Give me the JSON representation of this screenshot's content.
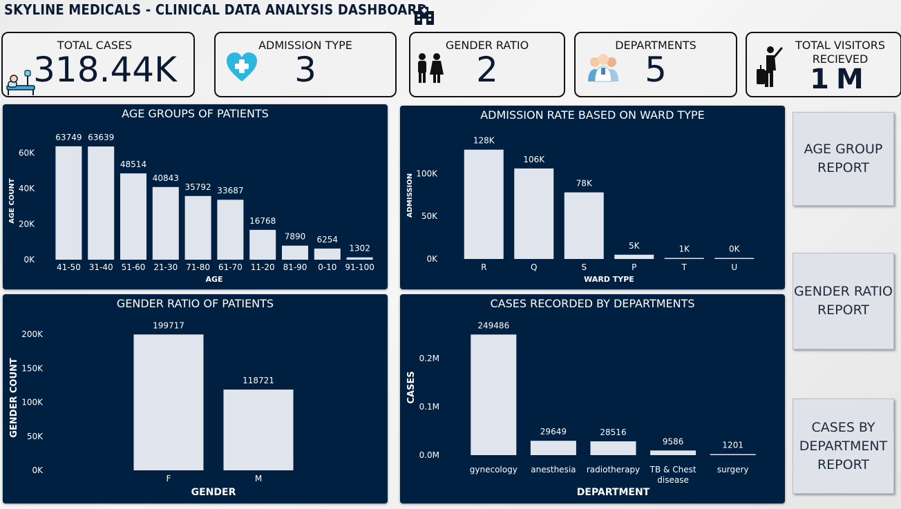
{
  "header": {
    "title": "SKYLINE MEDICALS - CLINICAL DATA ANALYSIS DASHBOARD"
  },
  "kpis": [
    {
      "label": "TOTAL CASES",
      "value": "318.44K",
      "icon": "patient-bed-icon"
    },
    {
      "label": "ADMISSION TYPE",
      "value": "3",
      "icon": "heart-plus-icon"
    },
    {
      "label": "GENDER RATIO",
      "value": "2",
      "icon": "male-female-icon"
    },
    {
      "label": "DEPARTMENTS",
      "value": "5",
      "icon": "doctors-group-icon"
    },
    {
      "label": "TOTAL VISITORS\nRECIEVED",
      "value": "1M",
      "icon": "traveler-luggage-icon"
    }
  ],
  "nav": {
    "age_report": "AGE GROUP\nREPORT",
    "gender_report": "GENDER RATIO\nREPORT",
    "department_report": "CASES BY\nDEPARTMENT\nREPORT"
  },
  "colors": {
    "panel_bg": "#002042",
    "bar": "#e0e4ec",
    "text": "#ffffff"
  },
  "chart_data": [
    {
      "id": "age",
      "type": "bar",
      "title": "AGE GROUPS OF PATIENTS",
      "xlabel": "AGE",
      "ylabel": "AGE COUNT",
      "categories": [
        "41-50",
        "31-40",
        "51-60",
        "21-30",
        "71-80",
        "61-70",
        "11-20",
        "81-90",
        "0-10",
        "91-100"
      ],
      "values": [
        63749,
        63639,
        48514,
        40843,
        35792,
        33687,
        16768,
        7890,
        6254,
        1302
      ],
      "value_labels": [
        "63749",
        "63639",
        "48514",
        "40843",
        "35792",
        "33687",
        "16768",
        "7890",
        "6254",
        "1302"
      ],
      "y_ticks": [
        0,
        20000,
        40000,
        60000
      ],
      "y_tick_labels": [
        "0K",
        "20K",
        "40K",
        "60K"
      ],
      "ylim": [
        0,
        66000
      ]
    },
    {
      "id": "ward",
      "type": "bar",
      "title": "ADMISSION RATE BASED ON WARD TYPE",
      "xlabel": "WARD TYPE",
      "ylabel": "ADMISSION",
      "categories": [
        "R",
        "Q",
        "S",
        "P",
        "T",
        "U"
      ],
      "values": [
        128000,
        106000,
        78000,
        5000,
        1000,
        0
      ],
      "value_labels": [
        "128K",
        "106K",
        "78K",
        "5K",
        "1K",
        "0K"
      ],
      "y_ticks": [
        0,
        50000,
        100000
      ],
      "y_tick_labels": [
        "0K",
        "50K",
        "100K"
      ],
      "ylim": [
        0,
        131000
      ]
    },
    {
      "id": "gender",
      "type": "bar",
      "title": "GENDER RATIO OF PATIENTS",
      "xlabel": "GENDER",
      "ylabel": "GENDER COUNT",
      "categories": [
        "F",
        "M"
      ],
      "values": [
        199717,
        118721
      ],
      "value_labels": [
        "199717",
        "118721"
      ],
      "y_ticks": [
        0,
        50000,
        100000,
        150000,
        200000
      ],
      "y_tick_labels": [
        "0K",
        "50K",
        "100K",
        "150K",
        "200K"
      ],
      "ylim": [
        0,
        200000
      ]
    },
    {
      "id": "dept",
      "type": "bar",
      "title": "CASES RECORDED BY DEPARTMENTS",
      "xlabel": "DEPARTMENT",
      "ylabel": "CASES",
      "categories": [
        "gynecology",
        "anesthesia",
        "radiotherapy",
        "TB & Chest\ndisease",
        "surgery"
      ],
      "values": [
        249486,
        29649,
        28516,
        9586,
        1201
      ],
      "value_labels": [
        "249486",
        "29649",
        "28516",
        "9586",
        "1201"
      ],
      "y_ticks": [
        0,
        100000,
        200000
      ],
      "y_tick_labels": [
        "0.0M",
        "0.1M",
        "0.2M"
      ],
      "ylim": [
        0,
        250000
      ]
    }
  ]
}
